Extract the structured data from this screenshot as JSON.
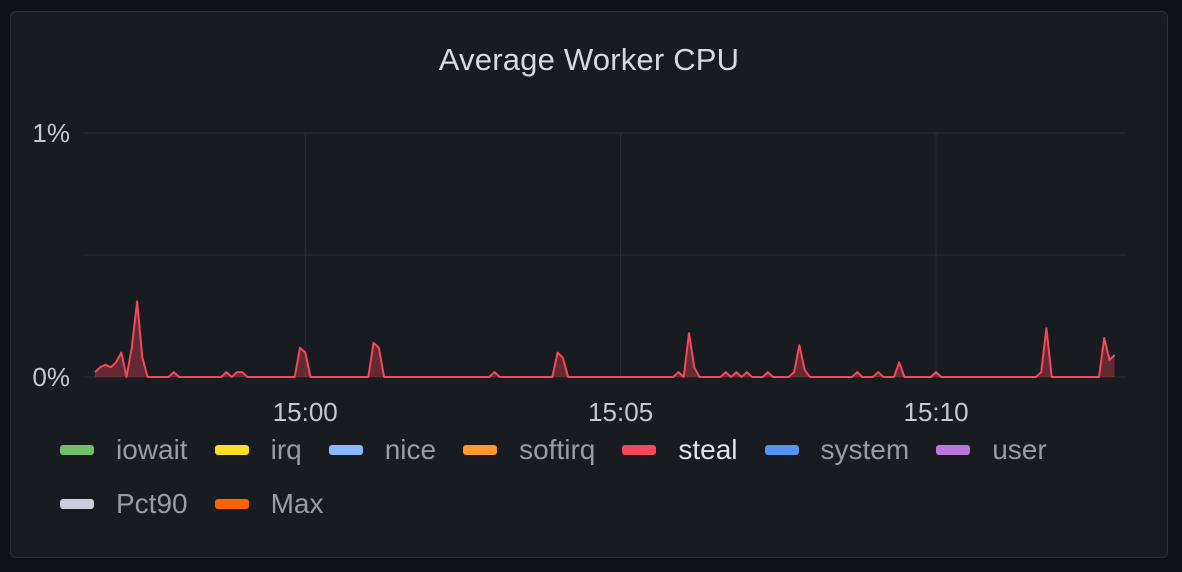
{
  "panel": {
    "title": "Average Worker CPU"
  },
  "chart_data": {
    "type": "area",
    "title": "Average Worker CPU",
    "ylim": [
      0,
      1
    ],
    "y_ticks": [
      {
        "value": 0,
        "label": "0%"
      },
      {
        "value": 1,
        "label": "1%"
      }
    ],
    "x_range": [
      "14:56:40",
      "15:12:55"
    ],
    "x_ticks": [
      {
        "value": "15:00",
        "label": "15:00"
      },
      {
        "value": "15:05",
        "label": "15:05"
      },
      {
        "value": "15:10",
        "label": "15:10"
      }
    ],
    "grid": true,
    "legend_position": "bottom",
    "series": [
      {
        "name": "steal",
        "color": "#f2495c",
        "points": [
          [
            "14:56:40",
            0.02
          ],
          [
            "14:56:45",
            0.04
          ],
          [
            "14:56:50",
            0.05
          ],
          [
            "14:56:55",
            0.04
          ],
          [
            "14:57:00",
            0.06
          ],
          [
            "14:57:05",
            0.1
          ],
          [
            "14:57:10",
            0.0
          ],
          [
            "14:57:15",
            0.12
          ],
          [
            "14:57:20",
            0.31
          ],
          [
            "14:57:25",
            0.08
          ],
          [
            "14:57:30",
            0.0
          ],
          [
            "14:57:40",
            0.0
          ],
          [
            "14:57:50",
            0.0
          ],
          [
            "14:57:55",
            0.02
          ],
          [
            "14:58:00",
            0.0
          ],
          [
            "14:58:40",
            0.0
          ],
          [
            "14:58:45",
            0.02
          ],
          [
            "14:58:50",
            0.0
          ],
          [
            "14:58:55",
            0.02
          ],
          [
            "14:59:00",
            0.02
          ],
          [
            "14:59:05",
            0.0
          ],
          [
            "14:59:50",
            0.0
          ],
          [
            "14:59:55",
            0.12
          ],
          [
            "15:00:00",
            0.1
          ],
          [
            "15:00:05",
            0.0
          ],
          [
            "15:01:00",
            0.0
          ],
          [
            "15:01:05",
            0.14
          ],
          [
            "15:01:10",
            0.12
          ],
          [
            "15:01:15",
            0.0
          ],
          [
            "15:02:55",
            0.0
          ],
          [
            "15:03:00",
            0.02
          ],
          [
            "15:03:05",
            0.0
          ],
          [
            "15:03:55",
            0.0
          ],
          [
            "15:04:00",
            0.1
          ],
          [
            "15:04:05",
            0.08
          ],
          [
            "15:04:10",
            0.0
          ],
          [
            "15:05:50",
            0.0
          ],
          [
            "15:05:55",
            0.02
          ],
          [
            "15:06:00",
            0.0
          ],
          [
            "15:06:05",
            0.18
          ],
          [
            "15:06:10",
            0.04
          ],
          [
            "15:06:15",
            0.0
          ],
          [
            "15:06:35",
            0.0
          ],
          [
            "15:06:40",
            0.02
          ],
          [
            "15:06:45",
            0.0
          ],
          [
            "15:06:50",
            0.02
          ],
          [
            "15:06:55",
            0.0
          ],
          [
            "15:07:00",
            0.02
          ],
          [
            "15:07:05",
            0.0
          ],
          [
            "15:07:15",
            0.0
          ],
          [
            "15:07:20",
            0.02
          ],
          [
            "15:07:25",
            0.0
          ],
          [
            "15:07:40",
            0.0
          ],
          [
            "15:07:45",
            0.02
          ],
          [
            "15:07:50",
            0.13
          ],
          [
            "15:07:55",
            0.03
          ],
          [
            "15:08:00",
            0.0
          ],
          [
            "15:08:40",
            0.0
          ],
          [
            "15:08:45",
            0.02
          ],
          [
            "15:08:50",
            0.0
          ],
          [
            "15:09:00",
            0.0
          ],
          [
            "15:09:05",
            0.02
          ],
          [
            "15:09:10",
            0.0
          ],
          [
            "15:09:20",
            0.0
          ],
          [
            "15:09:25",
            0.06
          ],
          [
            "15:09:30",
            0.0
          ],
          [
            "15:09:55",
            0.0
          ],
          [
            "15:10:00",
            0.02
          ],
          [
            "15:10:05",
            0.0
          ],
          [
            "15:11:35",
            0.0
          ],
          [
            "15:11:40",
            0.02
          ],
          [
            "15:11:45",
            0.2
          ],
          [
            "15:11:50",
            0.0
          ],
          [
            "15:12:35",
            0.0
          ],
          [
            "15:12:40",
            0.16
          ],
          [
            "15:12:45",
            0.07
          ],
          [
            "15:12:50",
            0.09
          ]
        ]
      },
      {
        "name": "iowait",
        "color": "#73bf69",
        "points": []
      },
      {
        "name": "irq",
        "color": "#fade2a",
        "points": []
      },
      {
        "name": "nice",
        "color": "#8ab8ff",
        "points": []
      },
      {
        "name": "softirq",
        "color": "#ff9830",
        "points": []
      },
      {
        "name": "system",
        "color": "#5794f2",
        "points": []
      },
      {
        "name": "user",
        "color": "#b877d9",
        "points": []
      },
      {
        "name": "Pct90",
        "color": "#ccccdc",
        "points": []
      },
      {
        "name": "Max",
        "color": "#fa6400",
        "points": []
      }
    ]
  },
  "legend": [
    {
      "label": "iowait",
      "color": "#73bf69"
    },
    {
      "label": "irq",
      "color": "#fade2a"
    },
    {
      "label": "nice",
      "color": "#8ab8ff"
    },
    {
      "label": "softirq",
      "color": "#ff9830"
    },
    {
      "label": "steal",
      "color": "#f2495c",
      "active": true
    },
    {
      "label": "system",
      "color": "#5794f2"
    },
    {
      "label": "user",
      "color": "#b877d9"
    },
    {
      "label": "Pct90",
      "color": "#ccccdc"
    },
    {
      "label": "Max",
      "color": "#fa6400"
    }
  ]
}
